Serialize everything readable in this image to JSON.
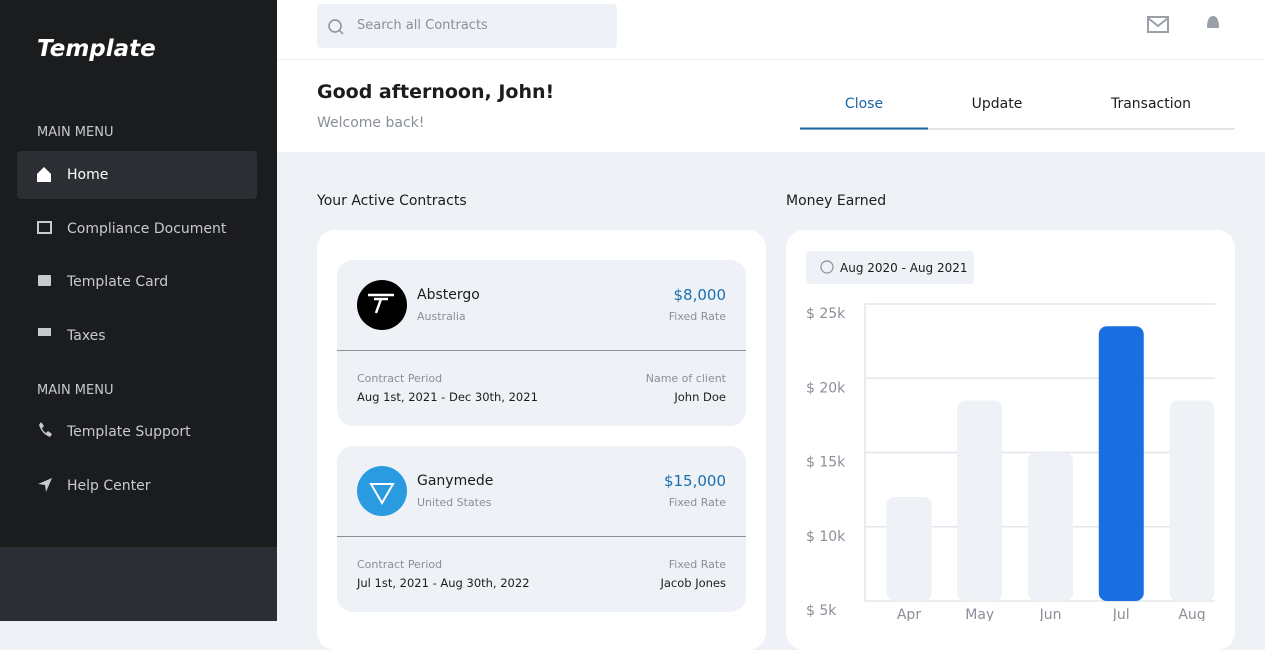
{
  "sidebar": {
    "logo": "Template",
    "menus": [
      {
        "heading": "MAIN MENU",
        "items": [
          "Home",
          "Compliance Document",
          "Template Card",
          "Taxes"
        ]
      },
      {
        "heading": "MAIN MENU",
        "items": [
          "Template Support",
          "Help Center"
        ]
      }
    ]
  },
  "topbar": {
    "search_placeholder": "Search all Contracts"
  },
  "header": {
    "greeting": "Good afternoon, John!",
    "subtitle": "Welcome back!",
    "tabs": [
      "Close",
      "Update",
      "Transaction"
    ]
  },
  "contracts": {
    "title": "Your Active Contracts",
    "items": [
      {
        "name": "Abstergo",
        "country": "Australia",
        "amount": "$8,000",
        "rate": "Fixed Rate",
        "period_label": "Contract Period",
        "period": "Aug 1st, 2021 - Dec 30th, 2021",
        "client_label": "Name of client",
        "client": "John Doe"
      },
      {
        "name": "Ganymede",
        "country": "United States",
        "amount": "$15,000",
        "rate": "Fixed Rate",
        "period_label": "Contract Period",
        "period": "Jul 1st, 2021 - Aug 30th, 2022",
        "client_label": "Fixed Rate",
        "client": "Jacob Jones"
      }
    ]
  },
  "chart_data": {
    "type": "bar",
    "title": "Money Earned",
    "date_range": "Aug 2020 - Aug 2021",
    "categories": [
      "Apr",
      "May",
      "Jun",
      "Jul",
      "Aug"
    ],
    "values": [
      12000,
      18500,
      15000,
      23500,
      18500
    ],
    "colors": [
      "#eef1f6",
      "#eef1f6",
      "#eef1f6",
      "#1a6fe0",
      "#eef1f6"
    ],
    "ylim": [
      5000,
      25000
    ],
    "yticks": [
      {
        "value": 5000,
        "label": "$ 5k"
      },
      {
        "value": 10000,
        "label": "$ 10k"
      },
      {
        "value": 15000,
        "label": "$ 15k"
      },
      {
        "value": 20000,
        "label": "$ 20k"
      },
      {
        "value": 25000,
        "label": "$ 25k"
      }
    ],
    "grid": true
  }
}
